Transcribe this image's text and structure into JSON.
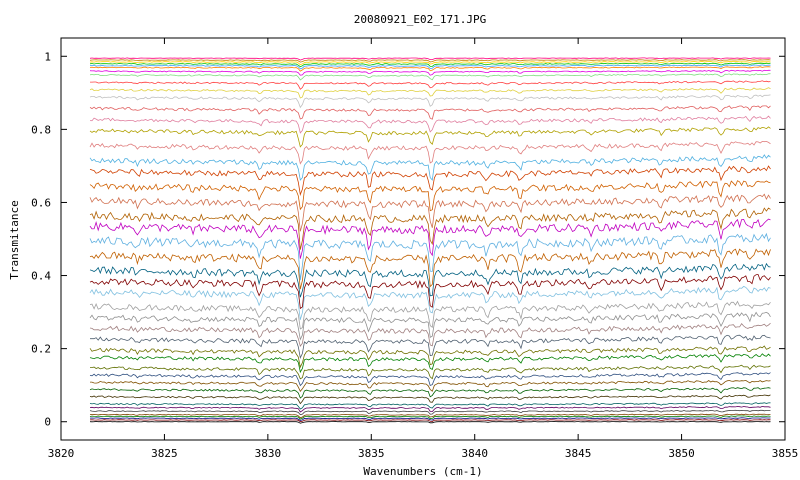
{
  "chart_data": {
    "type": "line",
    "title": "20080921_E02_171.JPG",
    "xlabel": "Wavenumbers (cm-1)",
    "ylabel": "Transmitance",
    "xlim": [
      3820,
      3855
    ],
    "ylim": [
      -0.05,
      1.05
    ],
    "x_ticks": [
      "3820",
      "3825",
      "3830",
      "3835",
      "3840",
      "3845",
      "3850",
      "3855"
    ],
    "y_ticks": [
      "0",
      "0.2",
      "0.4",
      "0.6",
      "0.8",
      "1"
    ],
    "grid": false,
    "legend": "none",
    "x_range_data": [
      3821.4,
      3854.3
    ],
    "series_levels": [
      0.0,
      0.005,
      0.01,
      0.015,
      0.02,
      0.03,
      0.04,
      0.05,
      0.07,
      0.09,
      0.11,
      0.13,
      0.15,
      0.18,
      0.2,
      0.23,
      0.26,
      0.29,
      0.32,
      0.36,
      0.39,
      0.42,
      0.46,
      0.5,
      0.54,
      0.57,
      0.61,
      0.65,
      0.69,
      0.72,
      0.76,
      0.8,
      0.83,
      0.86,
      0.89,
      0.91,
      0.93,
      0.95,
      0.96,
      0.97,
      0.975,
      0.98,
      0.985,
      0.99,
      0.995
    ],
    "series_colors": [
      "#000000",
      "#800000",
      "#000080",
      "#008000",
      "#804000",
      "#404040",
      "#600060",
      "#006060",
      "#403000",
      "#006000",
      "#805000",
      "#305080",
      "#607000",
      "#008000",
      "#707000",
      "#506070",
      "#a08080",
      "#909090",
      "#a0a0a0",
      "#80c0e0",
      "#800000",
      "#006080",
      "#c06000",
      "#60b0e0",
      "#c000c0",
      "#b06000",
      "#d07050",
      "#d06000",
      "#d04000",
      "#50b0e0",
      "#e08080",
      "#b0a000",
      "#e080a0",
      "#e06060",
      "#c0c0c0",
      "#e0d040",
      "#ff4040",
      "#80e080",
      "#e000e0",
      "#ff8000",
      "#40a0ff",
      "#00c000",
      "#ffd000",
      "#c08000",
      "#ff0080"
    ],
    "absorption_lines": [
      {
        "x": 3823.7,
        "depth": 0.15
      },
      {
        "x": 3826.4,
        "depth": 0.12
      },
      {
        "x": 3829.6,
        "depth": 0.35
      },
      {
        "x": 3831.6,
        "depth": 1.0
      },
      {
        "x": 3834.9,
        "depth": 0.55
      },
      {
        "x": 3837.9,
        "depth": 0.9
      },
      {
        "x": 3840.6,
        "depth": 0.3
      },
      {
        "x": 3842.2,
        "depth": 0.35
      },
      {
        "x": 3845.6,
        "depth": 0.2
      },
      {
        "x": 3849.0,
        "depth": 0.25
      },
      {
        "x": 3851.9,
        "depth": 0.45
      },
      {
        "x": 3853.3,
        "depth": 0.2
      }
    ]
  }
}
